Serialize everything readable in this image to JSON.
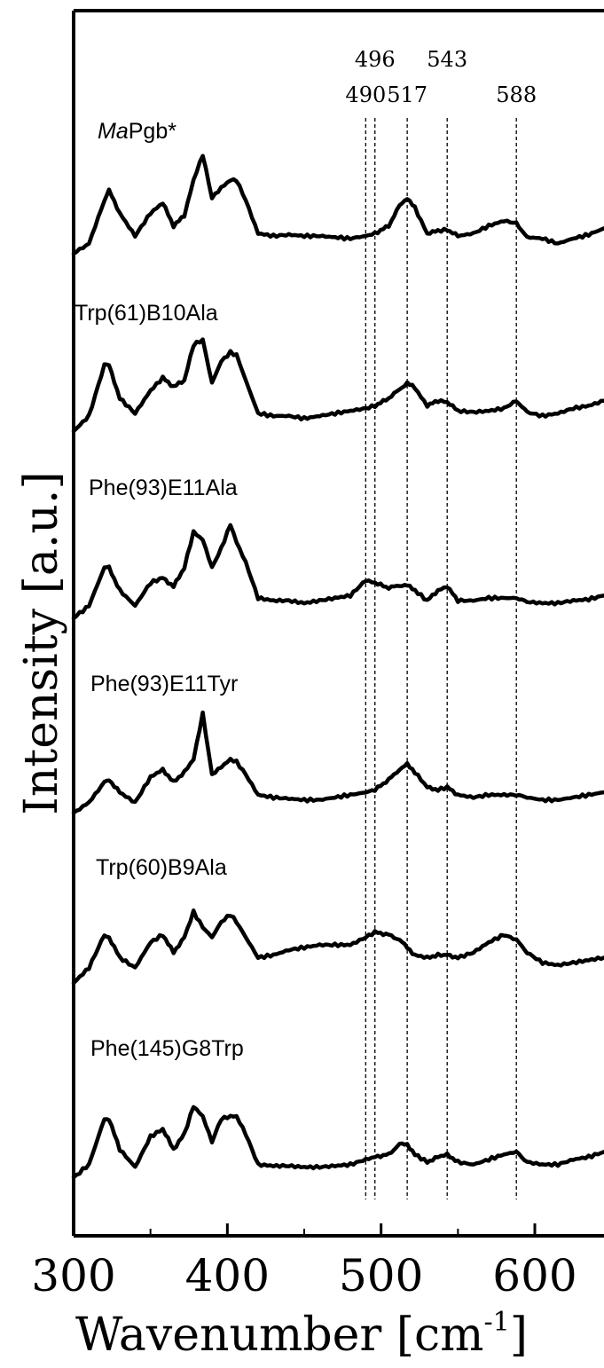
{
  "chart_data": {
    "type": "line",
    "xlabel": "Wavenumber [cm",
    "xlabel_superscript": "-1",
    "xlabel_suffix": "]",
    "ylabel": "Intensity [a.u.]",
    "xlim": [
      300,
      645
    ],
    "x_ticks": [
      300,
      400,
      500,
      600
    ],
    "grid": false,
    "reference_lines": [
      490,
      496,
      517,
      543,
      588
    ],
    "x": [
      300,
      310,
      320,
      323,
      330,
      340,
      350,
      358,
      365,
      372,
      378,
      384,
      390,
      396,
      402,
      406,
      412,
      420,
      430,
      440,
      450,
      460,
      470,
      480,
      490,
      496,
      505,
      512,
      517,
      522,
      530,
      537,
      543,
      550,
      560,
      570,
      580,
      588,
      595,
      605,
      615,
      625,
      635,
      645
    ],
    "series": [
      {
        "name": "MaPgb*",
        "name_italic": "Ma",
        "name_rest": "Pgb*",
        "values": [
          0.0,
          0.08,
          0.42,
          0.5,
          0.32,
          0.14,
          0.32,
          0.4,
          0.22,
          0.3,
          0.58,
          0.78,
          0.44,
          0.52,
          0.58,
          0.58,
          0.42,
          0.16,
          0.14,
          0.15,
          0.14,
          0.14,
          0.13,
          0.12,
          0.14,
          0.16,
          0.22,
          0.38,
          0.44,
          0.36,
          0.16,
          0.18,
          0.19,
          0.14,
          0.16,
          0.22,
          0.26,
          0.24,
          0.13,
          0.12,
          0.08,
          0.12,
          0.15,
          0.2
        ]
      },
      {
        "name": "Trp(61)B10Ala",
        "values": [
          0.0,
          0.12,
          0.52,
          0.52,
          0.26,
          0.14,
          0.32,
          0.42,
          0.35,
          0.4,
          0.68,
          0.72,
          0.38,
          0.55,
          0.62,
          0.6,
          0.4,
          0.14,
          0.12,
          0.12,
          0.1,
          0.12,
          0.14,
          0.16,
          0.18,
          0.2,
          0.26,
          0.33,
          0.38,
          0.34,
          0.2,
          0.24,
          0.23,
          0.16,
          0.15,
          0.16,
          0.18,
          0.24,
          0.15,
          0.12,
          0.14,
          0.18,
          0.2,
          0.24
        ]
      },
      {
        "name": "Phe(93)E11Ala",
        "values": [
          0.0,
          0.1,
          0.4,
          0.4,
          0.22,
          0.1,
          0.28,
          0.32,
          0.25,
          0.4,
          0.68,
          0.62,
          0.4,
          0.55,
          0.74,
          0.6,
          0.44,
          0.16,
          0.14,
          0.14,
          0.12,
          0.14,
          0.16,
          0.18,
          0.3,
          0.28,
          0.24,
          0.26,
          0.26,
          0.22,
          0.14,
          0.22,
          0.25,
          0.14,
          0.14,
          0.16,
          0.16,
          0.16,
          0.13,
          0.12,
          0.12,
          0.14,
          0.15,
          0.18
        ]
      },
      {
        "name": "Phe(93)E11Tyr",
        "values": [
          0.0,
          0.08,
          0.24,
          0.26,
          0.16,
          0.08,
          0.28,
          0.34,
          0.24,
          0.32,
          0.42,
          0.78,
          0.3,
          0.36,
          0.42,
          0.4,
          0.3,
          0.14,
          0.12,
          0.11,
          0.1,
          0.1,
          0.12,
          0.14,
          0.16,
          0.18,
          0.26,
          0.34,
          0.38,
          0.32,
          0.2,
          0.18,
          0.2,
          0.14,
          0.12,
          0.14,
          0.14,
          0.14,
          0.12,
          0.1,
          0.1,
          0.12,
          0.14,
          0.16
        ]
      },
      {
        "name": "Trp(60)B9Ala",
        "values": [
          0.0,
          0.12,
          0.38,
          0.36,
          0.2,
          0.12,
          0.32,
          0.38,
          0.24,
          0.36,
          0.56,
          0.44,
          0.36,
          0.48,
          0.54,
          0.48,
          0.36,
          0.2,
          0.22,
          0.26,
          0.28,
          0.3,
          0.3,
          0.3,
          0.36,
          0.4,
          0.38,
          0.34,
          0.28,
          0.22,
          0.2,
          0.22,
          0.22,
          0.2,
          0.24,
          0.32,
          0.38,
          0.34,
          0.24,
          0.16,
          0.14,
          0.16,
          0.18,
          0.2
        ]
      },
      {
        "name": "Phe(145)G8Trp",
        "values": [
          0.0,
          0.1,
          0.46,
          0.46,
          0.22,
          0.08,
          0.32,
          0.38,
          0.22,
          0.34,
          0.56,
          0.48,
          0.28,
          0.46,
          0.48,
          0.48,
          0.34,
          0.1,
          0.09,
          0.09,
          0.08,
          0.08,
          0.09,
          0.1,
          0.14,
          0.16,
          0.18,
          0.26,
          0.26,
          0.18,
          0.12,
          0.16,
          0.18,
          0.12,
          0.1,
          0.14,
          0.18,
          0.2,
          0.12,
          0.1,
          0.1,
          0.14,
          0.16,
          0.2
        ]
      }
    ]
  }
}
